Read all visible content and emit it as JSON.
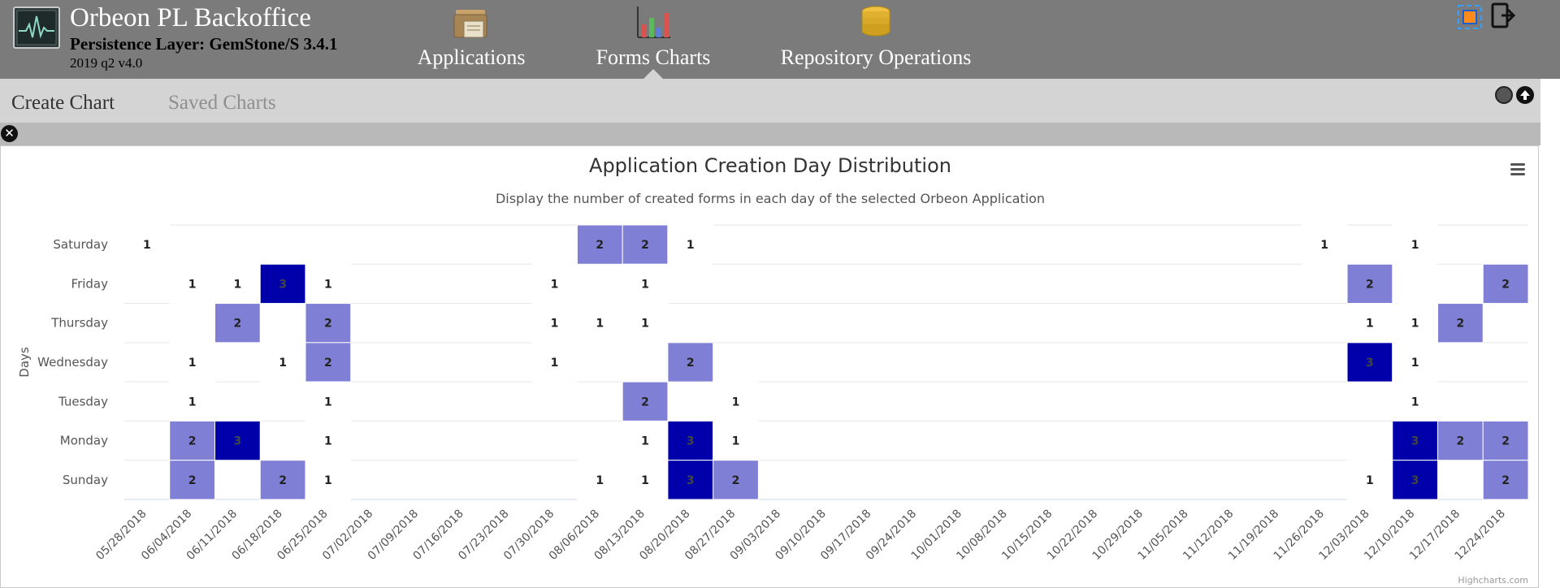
{
  "app": {
    "title": "Orbeon PL Backoffice",
    "subtitle": "Persistence Layer: GemStone/S 3.4.1",
    "version": "2019 q2 v4.0"
  },
  "nav": {
    "applications": "Applications",
    "forms_charts": "Forms Charts",
    "repository_operations": "Repository Operations",
    "active": "Forms Charts"
  },
  "tabs": {
    "create_chart": "Create Chart",
    "saved_charts": "Saved Charts"
  },
  "icons": {
    "logo": "heartbeat-monitor-icon",
    "applications": "folder-archive-icon",
    "forms_charts": "bar-chart-icon",
    "repository": "database-icon",
    "fullscreen": "fullscreen-icon",
    "logout": "logout-icon",
    "close": "close-icon",
    "menu": "hamburger-menu-icon"
  },
  "colors": {
    "header_bg": "#7b7b7b",
    "tabbar_bg": "#d4d4d4",
    "cell_low": "#7f7fd5",
    "cell_high": "#0000aa",
    "cell_one": "#ffffff"
  },
  "chart_data": {
    "type": "heatmap",
    "title": "Application Creation Day Distribution",
    "subtitle": "Display the number of created forms in each day of the selected Orbeon Application",
    "ylabel": "Days",
    "xlabel": "",
    "credits": "Highcharts.com",
    "y_categories": [
      "Sunday",
      "Monday",
      "Tuesday",
      "Wednesday",
      "Thursday",
      "Friday",
      "Saturday"
    ],
    "x_categories": [
      "05/28/2018",
      "06/04/2018",
      "06/11/2018",
      "06/18/2018",
      "06/25/2018",
      "07/02/2018",
      "07/09/2018",
      "07/16/2018",
      "07/23/2018",
      "07/30/2018",
      "08/06/2018",
      "08/13/2018",
      "08/20/2018",
      "08/27/2018",
      "09/03/2018",
      "09/10/2018",
      "09/17/2018",
      "09/24/2018",
      "10/01/2018",
      "10/08/2018",
      "10/15/2018",
      "10/22/2018",
      "10/29/2018",
      "11/05/2018",
      "11/12/2018",
      "11/19/2018",
      "11/26/2018",
      "12/03/2018",
      "12/10/2018",
      "12/17/2018",
      "12/24/2018"
    ],
    "points": [
      {
        "week": "05/28/2018",
        "day": "Saturday",
        "value": 1
      },
      {
        "week": "06/04/2018",
        "day": "Friday",
        "value": 1
      },
      {
        "week": "06/04/2018",
        "day": "Wednesday",
        "value": 1
      },
      {
        "week": "06/04/2018",
        "day": "Tuesday",
        "value": 1
      },
      {
        "week": "06/04/2018",
        "day": "Monday",
        "value": 2
      },
      {
        "week": "06/04/2018",
        "day": "Sunday",
        "value": 2
      },
      {
        "week": "06/11/2018",
        "day": "Friday",
        "value": 1
      },
      {
        "week": "06/11/2018",
        "day": "Thursday",
        "value": 2
      },
      {
        "week": "06/11/2018",
        "day": "Monday",
        "value": 3
      },
      {
        "week": "06/18/2018",
        "day": "Friday",
        "value": 3
      },
      {
        "week": "06/18/2018",
        "day": "Wednesday",
        "value": 1
      },
      {
        "week": "06/18/2018",
        "day": "Sunday",
        "value": 2
      },
      {
        "week": "06/25/2018",
        "day": "Friday",
        "value": 1
      },
      {
        "week": "06/25/2018",
        "day": "Thursday",
        "value": 2
      },
      {
        "week": "06/25/2018",
        "day": "Wednesday",
        "value": 2
      },
      {
        "week": "06/25/2018",
        "day": "Tuesday",
        "value": 1
      },
      {
        "week": "06/25/2018",
        "day": "Monday",
        "value": 1
      },
      {
        "week": "06/25/2018",
        "day": "Sunday",
        "value": 1
      },
      {
        "week": "07/30/2018",
        "day": "Friday",
        "value": 1
      },
      {
        "week": "07/30/2018",
        "day": "Thursday",
        "value": 1
      },
      {
        "week": "07/30/2018",
        "day": "Wednesday",
        "value": 1
      },
      {
        "week": "08/06/2018",
        "day": "Saturday",
        "value": 2
      },
      {
        "week": "08/06/2018",
        "day": "Thursday",
        "value": 1
      },
      {
        "week": "08/06/2018",
        "day": "Sunday",
        "value": 1
      },
      {
        "week": "08/13/2018",
        "day": "Saturday",
        "value": 2
      },
      {
        "week": "08/13/2018",
        "day": "Friday",
        "value": 1
      },
      {
        "week": "08/13/2018",
        "day": "Thursday",
        "value": 1
      },
      {
        "week": "08/13/2018",
        "day": "Tuesday",
        "value": 2
      },
      {
        "week": "08/13/2018",
        "day": "Monday",
        "value": 1
      },
      {
        "week": "08/13/2018",
        "day": "Sunday",
        "value": 1
      },
      {
        "week": "08/20/2018",
        "day": "Saturday",
        "value": 1
      },
      {
        "week": "08/20/2018",
        "day": "Wednesday",
        "value": 2
      },
      {
        "week": "08/20/2018",
        "day": "Monday",
        "value": 3
      },
      {
        "week": "08/20/2018",
        "day": "Sunday",
        "value": 3
      },
      {
        "week": "08/27/2018",
        "day": "Tuesday",
        "value": 1
      },
      {
        "week": "08/27/2018",
        "day": "Monday",
        "value": 1
      },
      {
        "week": "08/27/2018",
        "day": "Sunday",
        "value": 2
      },
      {
        "week": "11/26/2018",
        "day": "Saturday",
        "value": 1
      },
      {
        "week": "12/03/2018",
        "day": "Friday",
        "value": 2
      },
      {
        "week": "12/03/2018",
        "day": "Thursday",
        "value": 1
      },
      {
        "week": "12/03/2018",
        "day": "Wednesday",
        "value": 3
      },
      {
        "week": "12/03/2018",
        "day": "Sunday",
        "value": 1
      },
      {
        "week": "12/10/2018",
        "day": "Saturday",
        "value": 1
      },
      {
        "week": "12/10/2018",
        "day": "Thursday",
        "value": 1
      },
      {
        "week": "12/10/2018",
        "day": "Wednesday",
        "value": 1
      },
      {
        "week": "12/10/2018",
        "day": "Tuesday",
        "value": 1
      },
      {
        "week": "12/10/2018",
        "day": "Monday",
        "value": 3
      },
      {
        "week": "12/10/2018",
        "day": "Sunday",
        "value": 3
      },
      {
        "week": "12/17/2018",
        "day": "Thursday",
        "value": 2
      },
      {
        "week": "12/17/2018",
        "day": "Monday",
        "value": 2
      },
      {
        "week": "12/24/2018",
        "day": "Friday",
        "value": 2
      },
      {
        "week": "12/24/2018",
        "day": "Monday",
        "value": 2
      },
      {
        "week": "12/24/2018",
        "day": "Sunday",
        "value": 2
      }
    ],
    "color_scale": {
      "1": "#ffffff",
      "2": "#7f7fd5",
      "3": "#0000aa"
    },
    "legend": "none",
    "grid": true
  }
}
